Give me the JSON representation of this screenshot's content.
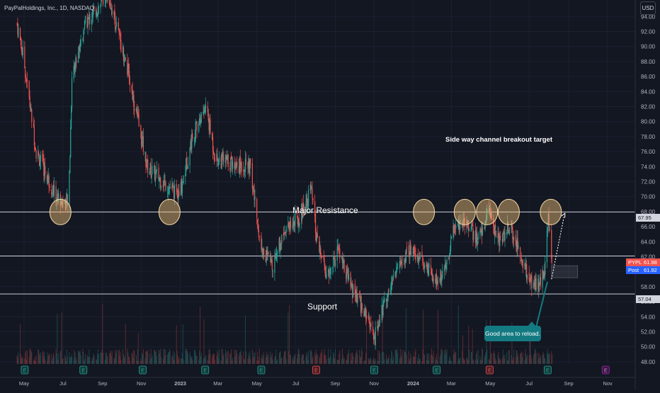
{
  "header": {
    "title": "PayPalHoldings, Inc., 1D, NASDAQ",
    "currency": "USD"
  },
  "annotations": {
    "breakout_target": "Side way channel breakout target",
    "major_resistance": "Major Resistance",
    "support": "Support",
    "callout": "Good area to reload."
  },
  "price_badges": {
    "resistance": "67.95",
    "ticker": "PYPL",
    "last": "61.98",
    "post_label": "Post",
    "post": "61.92",
    "support": "57.04"
  },
  "colors": {
    "background": "#131722",
    "up": "#26a69a",
    "down": "#ef5350",
    "circle_fill": "#f3c37a",
    "callout": "#147a82",
    "post_badge": "#2962ff"
  },
  "chart_data": {
    "type": "candlestick",
    "title": "PayPalHoldings, Inc., 1D, NASDAQ",
    "ylim": [
      47,
      96
    ],
    "y_ticks": [
      "48.00",
      "50.00",
      "52.00",
      "54.00",
      "56.00",
      "58.00",
      "60.00",
      "62.00",
      "64.00",
      "66.00",
      "68.00",
      "70.00",
      "72.00",
      "74.00",
      "76.00",
      "78.00",
      "80.00",
      "82.00",
      "84.00",
      "86.00",
      "88.00",
      "90.00",
      "92.00",
      "94.00"
    ],
    "x_ticks": [
      "May",
      "Jul",
      "Sep",
      "Nov",
      "2023",
      "Mar",
      "May",
      "Jul",
      "Sep",
      "Nov",
      "2024",
      "Mar",
      "May",
      "Jul",
      "Sep",
      "Nov"
    ],
    "price_path": [
      {
        "date": "2022-04-20",
        "close": 93
      },
      {
        "date": "2022-05-01",
        "close": 88
      },
      {
        "date": "2022-05-20",
        "close": 76
      },
      {
        "date": "2022-06-20",
        "close": 70
      },
      {
        "date": "2022-07-10",
        "close": 69
      },
      {
        "date": "2022-07-15",
        "close": 86
      },
      {
        "date": "2022-08-05",
        "close": 93
      },
      {
        "date": "2022-09-10",
        "close": 97
      },
      {
        "date": "2022-10-10",
        "close": 87
      },
      {
        "date": "2022-11-10",
        "close": 74
      },
      {
        "date": "2022-12-05",
        "close": 72
      },
      {
        "date": "2022-12-30",
        "close": 70
      },
      {
        "date": "2023-01-20",
        "close": 78
      },
      {
        "date": "2023-02-10",
        "close": 82
      },
      {
        "date": "2023-02-25",
        "close": 75
      },
      {
        "date": "2023-04-20",
        "close": 74
      },
      {
        "date": "2023-05-08",
        "close": 63
      },
      {
        "date": "2023-05-25",
        "close": 61
      },
      {
        "date": "2023-06-15",
        "close": 66
      },
      {
        "date": "2023-07-05",
        "close": 67
      },
      {
        "date": "2023-07-25",
        "close": 71
      },
      {
        "date": "2023-08-03",
        "close": 64
      },
      {
        "date": "2023-08-20",
        "close": 59
      },
      {
        "date": "2023-09-05",
        "close": 63
      },
      {
        "date": "2023-09-25",
        "close": 58
      },
      {
        "date": "2023-10-20",
        "close": 54
      },
      {
        "date": "2023-11-01",
        "close": 51
      },
      {
        "date": "2023-11-20",
        "close": 57
      },
      {
        "date": "2023-12-10",
        "close": 61
      },
      {
        "date": "2023-12-28",
        "close": 63
      },
      {
        "date": "2024-01-20",
        "close": 61
      },
      {
        "date": "2024-02-05",
        "close": 59
      },
      {
        "date": "2024-02-20",
        "close": 60
      },
      {
        "date": "2024-03-05",
        "close": 66
      },
      {
        "date": "2024-03-25",
        "close": 67
      },
      {
        "date": "2024-04-10",
        "close": 64
      },
      {
        "date": "2024-04-29",
        "close": 68
      },
      {
        "date": "2024-05-15",
        "close": 64
      },
      {
        "date": "2024-05-30",
        "close": 66
      },
      {
        "date": "2024-06-15",
        "close": 63
      },
      {
        "date": "2024-07-01",
        "close": 59
      },
      {
        "date": "2024-07-15",
        "close": 58
      },
      {
        "date": "2024-07-25",
        "close": 60
      },
      {
        "date": "2024-07-31",
        "close": 67
      },
      {
        "date": "2024-08-06",
        "close": 62
      }
    ],
    "horizontal_levels": [
      {
        "label": "Major Resistance",
        "value": 67.95
      },
      {
        "label": "",
        "value": 62.1
      },
      {
        "label": "Support",
        "value": 57.04
      }
    ],
    "highlight_circles": [
      {
        "date": "2022-06-27",
        "value": 67.95
      },
      {
        "date": "2022-12-15",
        "value": 67.95
      },
      {
        "date": "2024-01-18",
        "value": 67.95
      },
      {
        "date": "2024-03-22",
        "value": 67.95
      },
      {
        "date": "2024-04-26",
        "value": 67.95
      },
      {
        "date": "2024-05-30",
        "value": 67.95
      },
      {
        "date": "2024-08-04",
        "value": 67.95
      }
    ],
    "event_markers": [
      {
        "date": "2022-05-02",
        "label": "E",
        "kind": "earnings"
      },
      {
        "date": "2022-08-02",
        "label": "E",
        "kind": "earnings"
      },
      {
        "date": "2022-11-03",
        "label": "E",
        "kind": "earnings"
      },
      {
        "date": "2023-02-09",
        "label": "E",
        "kind": "earnings"
      },
      {
        "date": "2023-05-08",
        "label": "E",
        "kind": "earnings"
      },
      {
        "date": "2023-08-02",
        "label": "E",
        "kind": "earnings-miss"
      },
      {
        "date": "2023-11-01",
        "label": "E",
        "kind": "earnings"
      },
      {
        "date": "2024-02-07",
        "label": "E",
        "kind": "earnings"
      },
      {
        "date": "2024-04-30",
        "label": "E",
        "kind": "earnings-miss"
      },
      {
        "date": "2024-07-30",
        "label": "E",
        "kind": "earnings"
      },
      {
        "date": "2024-10-29",
        "label": "E",
        "kind": "upcoming"
      }
    ],
    "zone_box": {
      "from": "2024-08-05",
      "to": "2024-09-15",
      "low": 59.2,
      "high": 60.8
    },
    "projection": {
      "from_date": "2024-08-05",
      "from_value": 59.0,
      "to_date": "2024-08-25",
      "to_value": 67.5
    }
  }
}
